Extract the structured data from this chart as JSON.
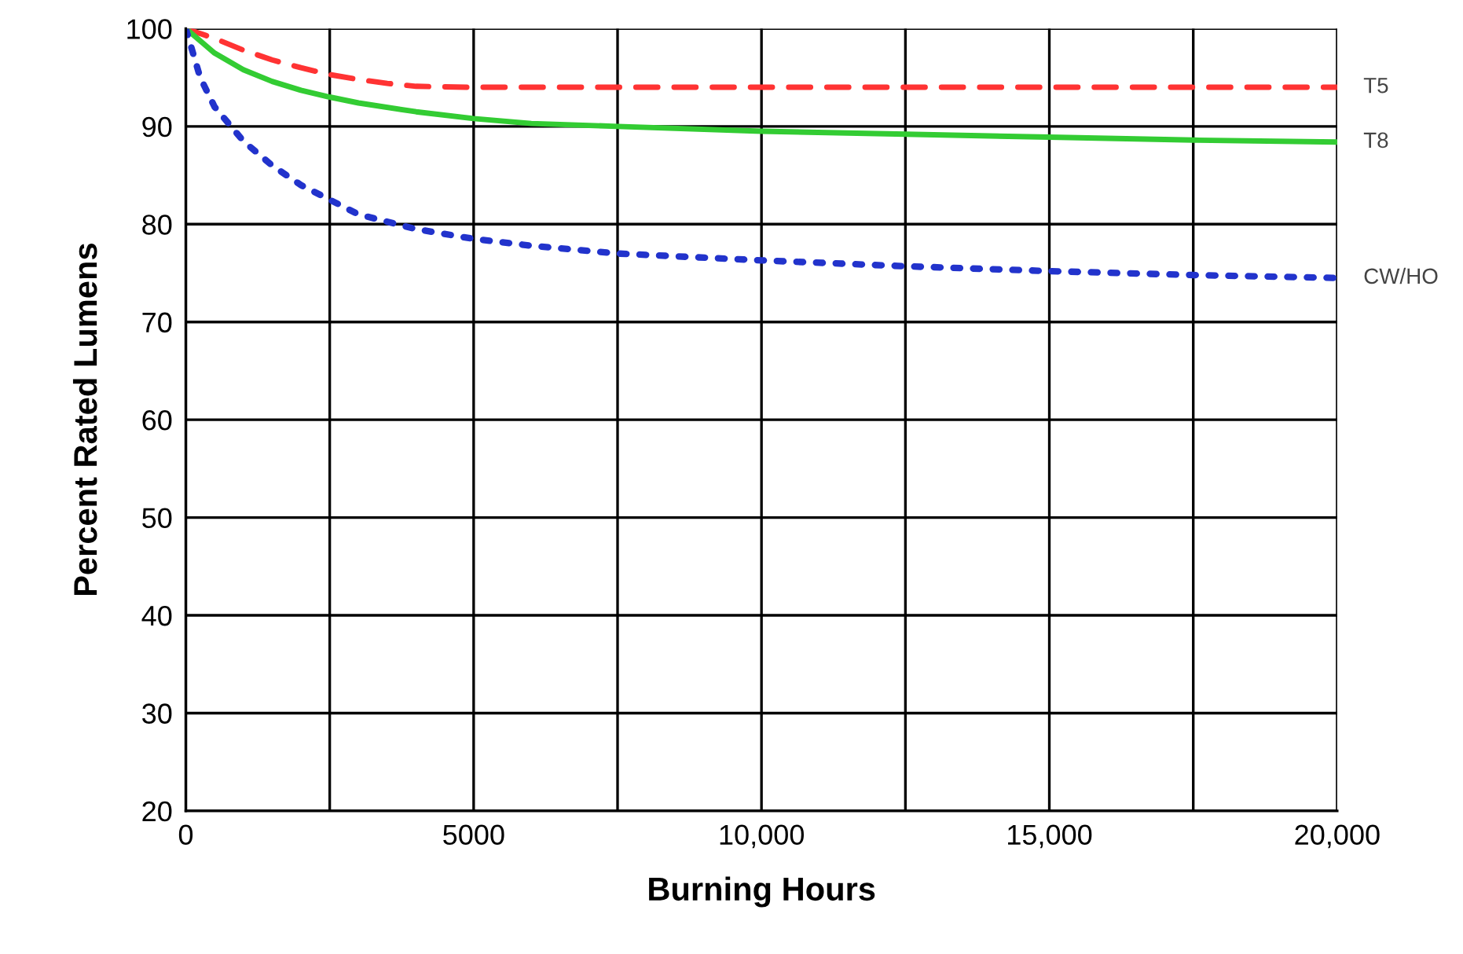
{
  "chart_data": {
    "type": "line",
    "xlabel": "Burning Hours",
    "ylabel": "Percent Rated Lumens",
    "xlim": [
      0,
      20000
    ],
    "ylim": [
      20,
      100
    ],
    "xticks": [
      0,
      {
        "value": 2500,
        "label": null
      },
      5000,
      {
        "value": 7500,
        "label": null
      },
      {
        "value": 10000,
        "label": "10,000"
      },
      {
        "value": 12500,
        "label": null
      },
      {
        "value": 15000,
        "label": "15,000"
      },
      {
        "value": 17500,
        "label": null
      },
      {
        "value": 20000,
        "label": "20,000"
      }
    ],
    "yticks": [
      20,
      30,
      40,
      50,
      60,
      70,
      80,
      90,
      100
    ],
    "grid": true,
    "legend": false,
    "marker": "none",
    "series": [
      {
        "name": "T5",
        "color": "#ff3333",
        "line_style": "dashed",
        "x": [
          0,
          500,
          1000,
          1500,
          2000,
          2500,
          3000,
          3500,
          4000,
          5000,
          7500,
          10000,
          15000,
          20000
        ],
        "values": [
          100,
          99,
          97.8,
          96.8,
          96,
          95.3,
          94.8,
          94.4,
          94.1,
          94,
          94,
          94,
          94,
          94
        ]
      },
      {
        "name": "T8",
        "color": "#33cc33",
        "line_style": "solid",
        "x": [
          0,
          500,
          1000,
          1500,
          2000,
          2500,
          3000,
          4000,
          5000,
          6000,
          7500,
          10000,
          12500,
          15000,
          17500,
          20000
        ],
        "values": [
          100,
          97.5,
          95.8,
          94.6,
          93.7,
          93,
          92.4,
          91.5,
          90.8,
          90.3,
          90,
          89.5,
          89.2,
          88.9,
          88.6,
          88.4
        ]
      },
      {
        "name": "CW/HO",
        "color": "#2233cc",
        "line_style": "dotted",
        "x": [
          0,
          250,
          500,
          1000,
          1500,
          2000,
          2500,
          3000,
          4000,
          5000,
          6000,
          7500,
          10000,
          12500,
          15000,
          17500,
          20000
        ],
        "values": [
          100,
          95,
          92,
          88.5,
          86,
          84,
          82.5,
          81,
          79.5,
          78.5,
          77.8,
          77,
          76.3,
          75.7,
          75.2,
          74.8,
          74.5
        ]
      }
    ]
  }
}
